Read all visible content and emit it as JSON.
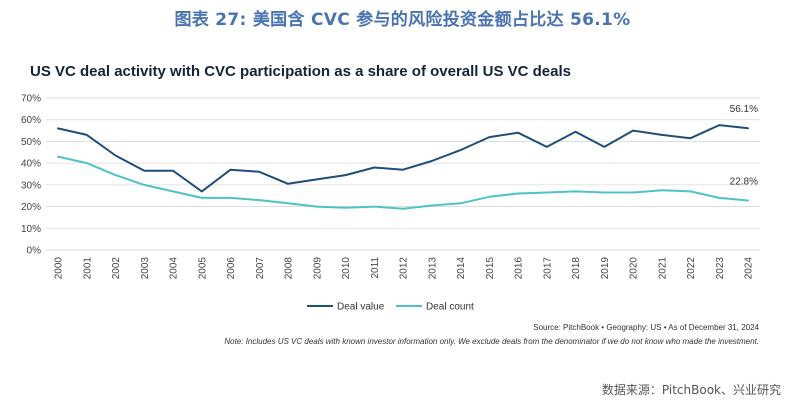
{
  "banner": "图表 27: 美国含 CVC 参与的风险投资金额占比达 56.1%",
  "source": "Source: PitchBook • Geography: US • As of December 31, 2024",
  "note": "Note: Includes US VC deals with known investor information only. We exclude deals from the denominator if we do not know who made the investment.",
  "footer": "数据来源：PitchBook、兴业研究",
  "colors": {
    "deal_value": "#1f4e79",
    "deal_count": "#4ec3c7",
    "grid": "#d9d9d9"
  },
  "chart_data": {
    "type": "line",
    "title": "US VC deal activity with CVC participation as a share of overall US VC deals",
    "xlabel": "",
    "ylabel": "",
    "ylim": [
      0,
      70
    ],
    "yticks": [
      0,
      10,
      20,
      30,
      40,
      50,
      60,
      70
    ],
    "ytick_labels": [
      "0%",
      "10%",
      "20%",
      "30%",
      "40%",
      "50%",
      "60%",
      "70%"
    ],
    "grid": true,
    "legend_position": "bottom-center",
    "categories": [
      "2000",
      "2001",
      "2002",
      "2003",
      "2004",
      "2005",
      "2006",
      "2007",
      "2008",
      "2009",
      "2010",
      "2011",
      "2012",
      "2013",
      "2014",
      "2015",
      "2016",
      "2017",
      "2018",
      "2019",
      "2020",
      "2021",
      "2022",
      "2023",
      "2024"
    ],
    "series": [
      {
        "name": "Deal value",
        "end_label": "56.1%",
        "values": [
          56,
          53,
          43.5,
          36.5,
          36.5,
          27,
          37,
          36,
          30.5,
          32.5,
          34.5,
          38,
          37,
          41,
          46,
          52,
          54,
          47.5,
          54.5,
          47.5,
          55,
          53,
          51.5,
          57.5,
          56.1
        ]
      },
      {
        "name": "Deal count",
        "end_label": "22.8%",
        "values": [
          43,
          40,
          34.5,
          30,
          27,
          24,
          24,
          23,
          21.5,
          20,
          19.5,
          20,
          19,
          20.5,
          21.5,
          24.5,
          26,
          26.5,
          27,
          26.5,
          26.5,
          27.5,
          27,
          24,
          22.8
        ]
      }
    ]
  }
}
